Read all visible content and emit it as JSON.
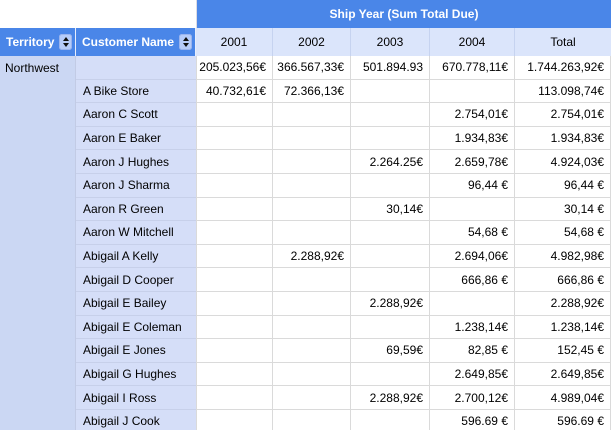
{
  "banner": {
    "title": "Ship Year (Sum Total Due)"
  },
  "headers": {
    "territory": "Territory",
    "customer": "Customer Name",
    "periods": [
      "2001",
      "2002",
      "2003",
      "2004",
      "Total"
    ]
  },
  "group": {
    "territory": "Northwest"
  },
  "rows": [
    {
      "customer": "",
      "values": [
        "205.023,56€",
        "366.567,33€",
        "501.894.93",
        "670.778,11€",
        "1.744.263,92€"
      ]
    },
    {
      "customer": "A Bike Store",
      "values": [
        "40.732,61€",
        "72.366,13€",
        "",
        "",
        "113.098,74€"
      ]
    },
    {
      "customer": "Aaron C Scott",
      "values": [
        "",
        "",
        "",
        "2.754,01€",
        "2.754,01€"
      ]
    },
    {
      "customer": "Aaron E Baker",
      "values": [
        "",
        "",
        "",
        "1.934,83€",
        "1.934,83€"
      ]
    },
    {
      "customer": "Aaron J Hughes",
      "values": [
        "",
        "",
        "2.264.25€",
        "2.659,78€",
        "4.924,03€"
      ]
    },
    {
      "customer": "Aaron J Sharma",
      "values": [
        "",
        "",
        "",
        "96,44 €",
        "96,44 €"
      ]
    },
    {
      "customer": "Aaron R Green",
      "values": [
        "",
        "",
        "30,14€",
        "",
        "30,14 €"
      ]
    },
    {
      "customer": "Aaron W Mitchell",
      "values": [
        "",
        "",
        "",
        "54,68 €",
        "54,68 €"
      ]
    },
    {
      "customer": "Abigail A Kelly",
      "values": [
        "",
        "2.288,92€",
        "",
        "2.694,06€",
        "4.982,98€"
      ]
    },
    {
      "customer": "Abigail D Cooper",
      "values": [
        "",
        "",
        "",
        "666,86 €",
        "666,86 €"
      ]
    },
    {
      "customer": "Abigail E Bailey",
      "values": [
        "",
        "",
        "2.288,92€",
        "",
        "2.288,92€"
      ]
    },
    {
      "customer": "Abigail E Coleman",
      "values": [
        "",
        "",
        "",
        "1.238,14€",
        "1.238,14€"
      ]
    },
    {
      "customer": "Abigail E Jones",
      "values": [
        "",
        "",
        "69,59€",
        "82,85 €",
        "152,45 €"
      ]
    },
    {
      "customer": "Abigail G Hughes",
      "values": [
        "",
        "",
        "",
        "2.649,85€",
        "2.649,85€"
      ]
    },
    {
      "customer": "Abigail I Ross",
      "values": [
        "",
        "",
        "2.288,92€",
        "2.700,12€",
        "4.989,04€"
      ]
    },
    {
      "customer": "Abigail J Cook",
      "values": [
        "",
        "",
        "",
        "596.69 €",
        "596.69 €"
      ]
    }
  ],
  "icons": {
    "sort": "sort-up-down-icon"
  },
  "colors": {
    "banner_blue": "#4a86e8",
    "period_header_bg": "#dbe5fb",
    "territory_column_bg": "#cbd7f3",
    "customer_column_bg": "#d5def8",
    "grid_line": "#dadada",
    "header_text": "#ffffff"
  }
}
